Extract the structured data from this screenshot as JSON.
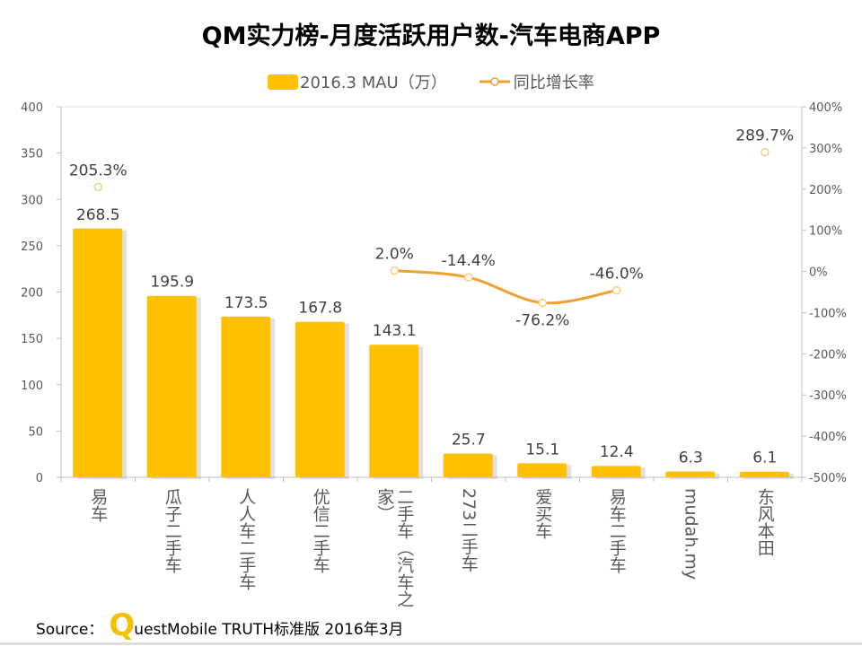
{
  "chart_data": {
    "type": "bar",
    "title": "QM实力榜-月度活跃用户数-汽车电商APP",
    "categories": [
      "易车",
      "瓜子二手车",
      "人人车二手车",
      "优信二手车",
      "二手车（汽车之家）",
      "273二手车",
      "爱买车",
      "易车二手车",
      "mudah.my",
      "东风本田"
    ],
    "series": [
      {
        "name": "2016.3 MAU（万）",
        "type": "bar",
        "axis": "left",
        "color": "#FFC000",
        "values": [
          268.5,
          195.9,
          173.5,
          167.8,
          143.1,
          25.7,
          15.1,
          12.4,
          6.3,
          6.1
        ],
        "labels": [
          "268.5",
          "195.9",
          "173.5",
          "167.8",
          "143.1",
          "25.7",
          "15.1",
          "12.4",
          "6.3",
          "6.1"
        ]
      },
      {
        "name": "同比增长率",
        "type": "line",
        "axis": "right",
        "color": "#F0A030",
        "values": [
          205.3,
          null,
          null,
          null,
          2.0,
          -14.4,
          -76.2,
          -46.0,
          null,
          289.7
        ],
        "labels": [
          "205.3%",
          null,
          null,
          null,
          "2.0%",
          "-14.4%",
          "-76.2%",
          "-46.0%",
          null,
          "289.7%"
        ]
      }
    ],
    "y_left": {
      "range": [
        0,
        400
      ],
      "ticks": [
        "0",
        "50",
        "100",
        "150",
        "200",
        "250",
        "300",
        "350",
        "400"
      ]
    },
    "y_right": {
      "range": [
        -500,
        400
      ],
      "ticks": [
        "-500%",
        "-400%",
        "-300%",
        "-200%",
        "-100%",
        "0%",
        "100%",
        "200%",
        "300%",
        "400%"
      ]
    },
    "legend": "top",
    "grid": false
  },
  "source": {
    "prefix": "Source：",
    "logo_letter": "Q",
    "text": "uestMobile TRUTH标准版 2016年3月"
  }
}
